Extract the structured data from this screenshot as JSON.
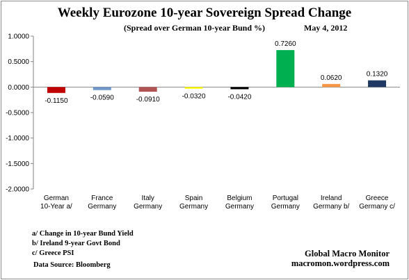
{
  "chart_data": {
    "type": "bar",
    "title": "Weekly Eurozone 10-year Sovereign Spread Change",
    "subtitle": "(Spread over German 10-year Bund  %)",
    "date": "May 4,  2012",
    "xlabel": "",
    "ylabel": "",
    "ylim": [
      -2.0,
      1.0
    ],
    "yticks": [
      "1.0000",
      "0.5000",
      "0.0000",
      "-0.5000",
      "-1.0000",
      "-1.5000",
      "-2.0000"
    ],
    "yticks_values": [
      1.0,
      0.5,
      0.0,
      -0.5,
      -1.0,
      -1.5,
      -2.0
    ],
    "grid": false,
    "categories": [
      [
        "German",
        "10-Year a/"
      ],
      [
        "France",
        "Germany"
      ],
      [
        "Italy",
        "Germany"
      ],
      [
        "Spain",
        "Germany"
      ],
      [
        "Belgium",
        "Germany"
      ],
      [
        "Portugal",
        "Germany"
      ],
      [
        "Ireland",
        "Germany b/"
      ],
      [
        "Greece",
        "Germany c/"
      ]
    ],
    "values": [
      -0.115,
      -0.059,
      -0.091,
      -0.032,
      -0.042,
      0.726,
      0.062,
      0.132
    ],
    "data_labels": [
      "-0.1150",
      "-0.0590",
      "-0.0910",
      "-0.0320",
      "-0.0420",
      "0.7260",
      "0.0620",
      "0.1320"
    ],
    "colors": [
      "#c00000",
      "#6f97c9",
      "#b35454",
      "#ffff00",
      "#000000",
      "#00b050",
      "#f79646",
      "#1f3864"
    ]
  },
  "footnotes": [
    "a/ Change in 10-year Bund Yield",
    "b/ Ireland 9-year Govt Bond",
    "c/ Greece PSI"
  ],
  "source": "Data Source:  Bloomberg",
  "credit": {
    "name": "Global Macro Monitor",
    "url": "macromon.wordpress.com"
  }
}
